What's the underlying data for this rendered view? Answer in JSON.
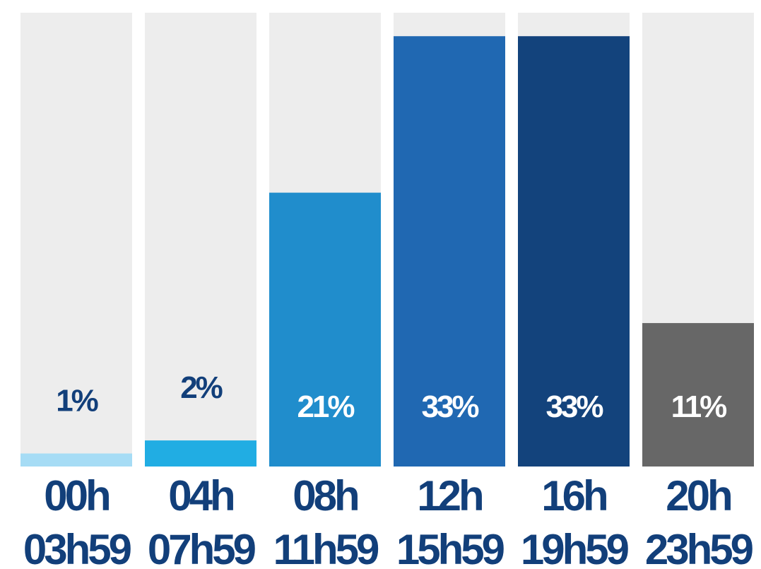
{
  "chart_data": {
    "type": "bar",
    "categories": [
      [
        "00h",
        "03h59"
      ],
      [
        "04h",
        "07h59"
      ],
      [
        "08h",
        "11h59"
      ],
      [
        "12h",
        "15h59"
      ],
      [
        "16h",
        "19h59"
      ],
      [
        "20h",
        "23h59"
      ]
    ],
    "values": [
      1,
      2,
      21,
      33,
      33,
      11
    ],
    "labels": [
      "1%",
      "2%",
      "21%",
      "33%",
      "33%",
      "11%"
    ],
    "ylim": [
      0,
      34.8
    ],
    "colors": [
      "#a6dcf5",
      "#21ade3",
      "#208dcc",
      "#2068b2",
      "#13437c",
      "#676767"
    ],
    "label_colors": [
      "#123f7a",
      "#123f7a",
      "#ffffff",
      "#ffffff",
      "#ffffff",
      "#ffffff"
    ],
    "track_color": "#ededed",
    "grid": false,
    "legend": "none"
  }
}
